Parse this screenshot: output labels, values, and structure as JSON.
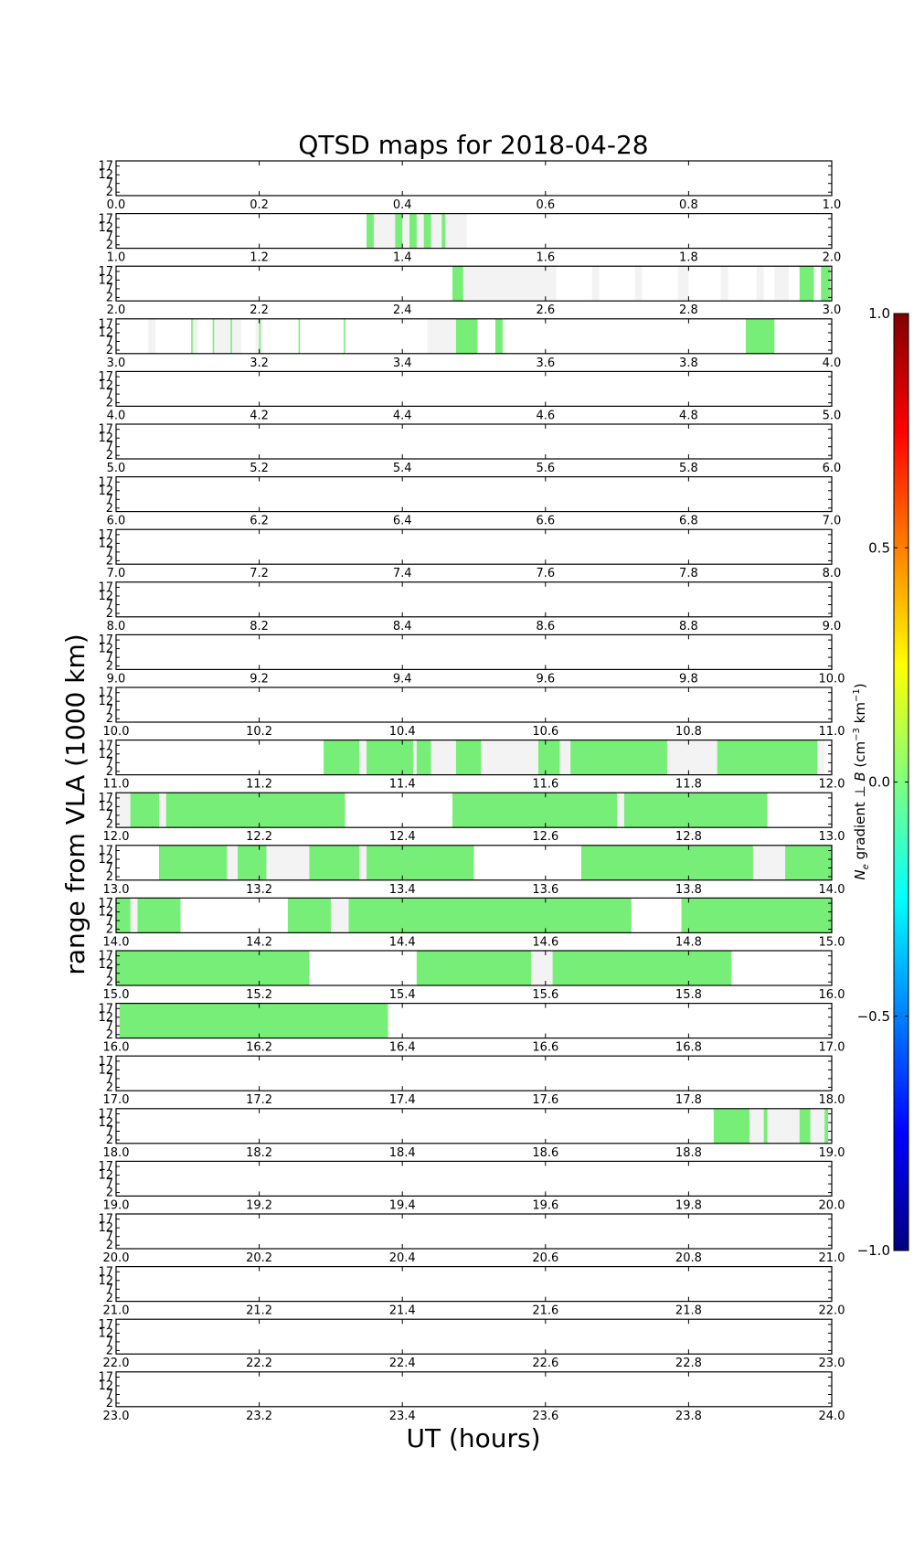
{
  "chart_data": {
    "type": "heatmap",
    "title": "QTSD maps for 2018-04-28",
    "xlabel": "UT (hours)",
    "ylabel": "range from VLA (1000 km)",
    "ytick_labels": [
      "17",
      "12",
      "7",
      "2"
    ],
    "ytick_values": [
      17,
      12,
      7,
      2
    ],
    "ylim": [
      0,
      20
    ],
    "colorbar": {
      "label": "N_e gradient ⊥ B (cm^-3 km^-1)",
      "label_main": "N",
      "label_sub": "e",
      "label_mid": " gradient ⊥ ",
      "label_b": "B",
      "label_unit": " (cm",
      "label_unit_exp": "−3",
      "label_unit_tail": " km",
      "label_unit_exp2": "−1",
      "label_close": ")",
      "range": [
        -1.0,
        1.0
      ],
      "ticks": [
        {
          "value": 1.0,
          "label": "1.0"
        },
        {
          "value": 0.5,
          "label": "0.5"
        },
        {
          "value": 0.0,
          "label": "0.0"
        },
        {
          "value": -0.5,
          "label": "−0.5"
        },
        {
          "value": -1.0,
          "label": "−1.0"
        }
      ]
    },
    "colors": {
      "data": "#77ee77",
      "gap": "#f3f3f3"
    },
    "rows": [
      {
        "start": 0,
        "ticks": [
          "0.0",
          "0.2",
          "0.4",
          "0.6",
          "0.8",
          "1.0"
        ],
        "gray": [],
        "green": []
      },
      {
        "start": 1,
        "ticks": [
          "1.0",
          "1.2",
          "1.4",
          "1.6",
          "1.8",
          "2.0"
        ],
        "gray": [
          [
            0.35,
            0.49
          ]
        ],
        "green": [
          [
            0.35,
            0.36
          ],
          [
            0.39,
            0.4
          ],
          [
            0.41,
            0.42
          ],
          [
            0.43,
            0.44
          ],
          [
            0.455,
            0.46
          ]
        ]
      },
      {
        "start": 2,
        "ticks": [
          "2.0",
          "2.2",
          "2.4",
          "2.6",
          "2.8",
          "3.0"
        ],
        "gray": [
          [
            0.47,
            0.615
          ],
          [
            0.665,
            0.675
          ],
          [
            0.725,
            0.735
          ],
          [
            0.785,
            0.8
          ],
          [
            0.845,
            0.855
          ],
          [
            0.895,
            0.905
          ],
          [
            0.92,
            0.94
          ]
        ],
        "green": [
          [
            0.47,
            0.485
          ],
          [
            0.955,
            0.975
          ],
          [
            0.985,
            0.998
          ]
        ]
      },
      {
        "start": 3,
        "ticks": [
          "3.0",
          "3.2",
          "3.4",
          "3.6",
          "3.8",
          "4.0"
        ],
        "gray": [
          [
            0.045,
            0.055
          ],
          [
            0.105,
            0.115
          ],
          [
            0.135,
            0.175
          ],
          [
            0.195,
            0.205
          ],
          [
            0.435,
            0.475
          ],
          [
            0.53,
            0.545
          ]
        ],
        "green": [
          [
            0.105,
            0.107
          ],
          [
            0.135,
            0.137
          ],
          [
            0.16,
            0.162
          ],
          [
            0.2,
            0.202
          ],
          [
            0.255,
            0.257
          ],
          [
            0.318,
            0.32
          ],
          [
            0.475,
            0.505
          ],
          [
            0.53,
            0.54
          ],
          [
            0.88,
            0.92
          ]
        ]
      },
      {
        "start": 4,
        "ticks": [
          "4.0",
          "4.2",
          "4.4",
          "4.6",
          "4.8",
          "5.0"
        ],
        "gray": [],
        "green": []
      },
      {
        "start": 5,
        "ticks": [
          "5.0",
          "5.2",
          "5.4",
          "5.6",
          "5.8",
          "6.0"
        ],
        "gray": [],
        "green": []
      },
      {
        "start": 6,
        "ticks": [
          "6.0",
          "6.2",
          "6.4",
          "6.6",
          "6.8",
          "7.0"
        ],
        "gray": [],
        "green": []
      },
      {
        "start": 7,
        "ticks": [
          "7.0",
          "7.2",
          "7.4",
          "7.6",
          "7.8",
          "8.0"
        ],
        "gray": [],
        "green": []
      },
      {
        "start": 8,
        "ticks": [
          "8.0",
          "8.2",
          "8.4",
          "8.6",
          "8.8",
          "9.0"
        ],
        "gray": [],
        "green": []
      },
      {
        "start": 9,
        "ticks": [
          "9.0",
          "9.2",
          "9.4",
          "9.6",
          "9.8",
          "10.0"
        ],
        "gray": [],
        "green": []
      },
      {
        "start": 10,
        "ticks": [
          "10.0",
          "10.2",
          "10.4",
          "10.6",
          "10.8",
          "11.0"
        ],
        "gray": [],
        "green": []
      },
      {
        "start": 11,
        "ticks": [
          "11.0",
          "11.2",
          "11.4",
          "11.6",
          "11.8",
          "12.0"
        ],
        "gray": [
          [
            0.29,
            0.99
          ]
        ],
        "green": [
          [
            0.29,
            0.34
          ],
          [
            0.35,
            0.415
          ],
          [
            0.42,
            0.44
          ],
          [
            0.475,
            0.51
          ],
          [
            0.59,
            0.62
          ],
          [
            0.635,
            0.77
          ],
          [
            0.84,
            0.98
          ]
        ]
      },
      {
        "start": 12,
        "ticks": [
          "12.0",
          "12.2",
          "12.4",
          "12.6",
          "12.8",
          "13.0"
        ],
        "gray": [
          [
            0.0,
            0.32
          ],
          [
            0.47,
            0.91
          ]
        ],
        "green": [
          [
            0.02,
            0.06
          ],
          [
            0.07,
            0.32
          ],
          [
            0.47,
            0.7
          ],
          [
            0.71,
            0.91
          ]
        ]
      },
      {
        "start": 13,
        "ticks": [
          "13.0",
          "13.2",
          "13.4",
          "13.6",
          "13.8",
          "14.0"
        ],
        "gray": [
          [
            0.06,
            0.5
          ],
          [
            0.65,
            1.0
          ]
        ],
        "green": [
          [
            0.06,
            0.155
          ],
          [
            0.17,
            0.21
          ],
          [
            0.27,
            0.34
          ],
          [
            0.35,
            0.5
          ],
          [
            0.65,
            0.89
          ],
          [
            0.935,
            1.0
          ]
        ]
      },
      {
        "start": 14,
        "ticks": [
          "14.0",
          "14.2",
          "14.4",
          "14.6",
          "14.8",
          "15.0"
        ],
        "gray": [
          [
            0.0,
            0.09
          ],
          [
            0.24,
            0.72
          ],
          [
            0.79,
            1.0
          ]
        ],
        "green": [
          [
            0.0,
            0.02
          ],
          [
            0.03,
            0.09
          ],
          [
            0.24,
            0.3
          ],
          [
            0.325,
            0.72
          ],
          [
            0.79,
            1.0
          ]
        ]
      },
      {
        "start": 15,
        "ticks": [
          "15.0",
          "15.2",
          "15.4",
          "15.6",
          "15.8",
          "16.0"
        ],
        "gray": [
          [
            0.0,
            0.27
          ],
          [
            0.42,
            0.86
          ]
        ],
        "green": [
          [
            0.0,
            0.27
          ],
          [
            0.42,
            0.58
          ],
          [
            0.61,
            0.86
          ]
        ]
      },
      {
        "start": 16,
        "ticks": [
          "16.0",
          "16.2",
          "16.4",
          "16.6",
          "16.8",
          "17.0"
        ],
        "gray": [
          [
            0.0,
            0.38
          ]
        ],
        "green": [
          [
            0.005,
            0.38
          ]
        ]
      },
      {
        "start": 17,
        "ticks": [
          "17.0",
          "17.2",
          "17.4",
          "17.6",
          "17.8",
          "18.0"
        ],
        "gray": [],
        "green": []
      },
      {
        "start": 18,
        "ticks": [
          "18.0",
          "18.2",
          "18.4",
          "18.6",
          "18.8",
          "19.0"
        ],
        "gray": [
          [
            0.835,
            0.995
          ]
        ],
        "green": [
          [
            0.835,
            0.885
          ],
          [
            0.905,
            0.91
          ],
          [
            0.955,
            0.97
          ],
          [
            0.99,
            0.995
          ]
        ]
      },
      {
        "start": 19,
        "ticks": [
          "19.0",
          "19.2",
          "19.4",
          "19.6",
          "19.8",
          "20.0"
        ],
        "gray": [],
        "green": []
      },
      {
        "start": 20,
        "ticks": [
          "20.0",
          "20.2",
          "20.4",
          "20.6",
          "20.8",
          "21.0"
        ],
        "gray": [],
        "green": []
      },
      {
        "start": 21,
        "ticks": [
          "21.0",
          "21.2",
          "21.4",
          "21.6",
          "21.8",
          "22.0"
        ],
        "gray": [],
        "green": []
      },
      {
        "start": 22,
        "ticks": [
          "22.0",
          "22.2",
          "22.4",
          "22.6",
          "22.8",
          "23.0"
        ],
        "gray": [],
        "green": []
      },
      {
        "start": 23,
        "ticks": [
          "23.0",
          "23.2",
          "23.4",
          "23.6",
          "23.8",
          "24.0"
        ],
        "gray": [],
        "green": []
      }
    ]
  }
}
